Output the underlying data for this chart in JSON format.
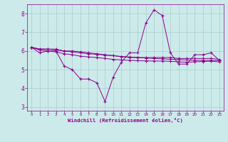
{
  "background_color": "#cceaea",
  "grid_color": "#aacccc",
  "line_color": "#8b008b",
  "xlabel": "Windchill (Refroidissement éolien,°C)",
  "ylim": [
    2.8,
    8.5
  ],
  "xlim": [
    -0.5,
    23.5
  ],
  "yticks": [
    3,
    4,
    5,
    6,
    7,
    8
  ],
  "xticks": [
    0,
    1,
    2,
    3,
    4,
    5,
    6,
    7,
    8,
    9,
    10,
    11,
    12,
    13,
    14,
    15,
    16,
    17,
    18,
    19,
    20,
    21,
    22,
    23
  ],
  "series": [
    [
      6.2,
      5.9,
      6.0,
      6.0,
      5.2,
      5.0,
      4.5,
      4.5,
      4.3,
      3.3,
      4.6,
      5.4,
      5.9,
      5.9,
      7.5,
      8.2,
      7.9,
      5.9,
      5.3,
      5.3,
      5.8,
      5.8,
      5.9,
      5.5
    ],
    [
      6.2,
      6.1,
      6.1,
      6.1,
      6.0,
      6.0,
      5.95,
      5.9,
      5.85,
      5.8,
      5.75,
      5.7,
      5.65,
      5.65,
      5.65,
      5.65,
      5.65,
      5.65,
      5.6,
      5.6,
      5.6,
      5.6,
      5.6,
      5.55
    ],
    [
      6.2,
      6.1,
      6.1,
      6.05,
      6.0,
      5.95,
      5.9,
      5.85,
      5.82,
      5.78,
      5.75,
      5.7,
      5.68,
      5.65,
      5.62,
      5.6,
      5.58,
      5.56,
      5.54,
      5.52,
      5.5,
      5.5,
      5.5,
      5.48
    ],
    [
      6.2,
      6.05,
      6.0,
      5.95,
      5.85,
      5.8,
      5.72,
      5.68,
      5.65,
      5.6,
      5.55,
      5.52,
      5.5,
      5.48,
      5.47,
      5.46,
      5.46,
      5.45,
      5.42,
      5.4,
      5.42,
      5.44,
      5.45,
      5.42
    ]
  ]
}
